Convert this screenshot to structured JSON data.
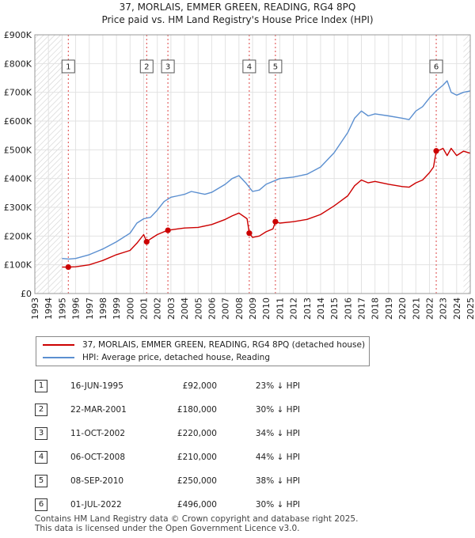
{
  "header": {
    "title": "37, MORLAIS, EMMER GREEN, READING, RG4 8PQ",
    "subtitle": "Price paid vs. HM Land Registry's House Price Index (HPI)"
  },
  "chart_data": {
    "type": "line",
    "title": "37, MORLAIS, EMMER GREEN, READING, RG4 8PQ",
    "subtitle": "Price paid vs. HM Land Registry's House Price Index (HPI)",
    "xlim": [
      1993.0,
      2025.0
    ],
    "ylim": [
      0,
      900000
    ],
    "y_ticks": [
      {
        "value": 0,
        "label": "£0"
      },
      {
        "value": 100000,
        "label": "£100K"
      },
      {
        "value": 200000,
        "label": "£200K"
      },
      {
        "value": 300000,
        "label": "£300K"
      },
      {
        "value": 400000,
        "label": "£400K"
      },
      {
        "value": 500000,
        "label": "£500K"
      },
      {
        "value": 600000,
        "label": "£600K"
      },
      {
        "value": 700000,
        "label": "£700K"
      },
      {
        "value": 800000,
        "label": "£800K"
      },
      {
        "value": 900000,
        "label": "£900K"
      }
    ],
    "x_ticks": [
      "1993",
      "1994",
      "1995",
      "1996",
      "1997",
      "1998",
      "1999",
      "2000",
      "2001",
      "2002",
      "2003",
      "2004",
      "2005",
      "2006",
      "2007",
      "2008",
      "2009",
      "2010",
      "2011",
      "2012",
      "2013",
      "2014",
      "2015",
      "2016",
      "2017",
      "2018",
      "2019",
      "2020",
      "2021",
      "2022",
      "2023",
      "2024",
      "2025"
    ],
    "grid": true,
    "series": [
      {
        "name": "37, MORLAIS, EMMER GREEN, READING, RG4 8PQ (detached house)",
        "color": "#cc0000",
        "points": [
          [
            1995.0,
            92000
          ],
          [
            1995.46,
            92000
          ],
          [
            1996.0,
            93000
          ],
          [
            1997.0,
            100000
          ],
          [
            1998.0,
            115000
          ],
          [
            1999.0,
            135000
          ],
          [
            2000.0,
            150000
          ],
          [
            2000.5,
            175000
          ],
          [
            2001.0,
            205000
          ],
          [
            2001.22,
            180000
          ],
          [
            2001.5,
            190000
          ],
          [
            2002.0,
            205000
          ],
          [
            2002.5,
            215000
          ],
          [
            2002.78,
            220000
          ],
          [
            2003.5,
            225000
          ],
          [
            2004.0,
            228000
          ],
          [
            2005.0,
            230000
          ],
          [
            2006.0,
            240000
          ],
          [
            2007.0,
            258000
          ],
          [
            2007.5,
            270000
          ],
          [
            2008.0,
            280000
          ],
          [
            2008.6,
            260000
          ],
          [
            2008.76,
            210000
          ],
          [
            2009.0,
            195000
          ],
          [
            2009.5,
            200000
          ],
          [
            2010.0,
            215000
          ],
          [
            2010.5,
            225000
          ],
          [
            2010.68,
            250000
          ],
          [
            2011.0,
            245000
          ],
          [
            2012.0,
            250000
          ],
          [
            2013.0,
            258000
          ],
          [
            2014.0,
            275000
          ],
          [
            2015.0,
            305000
          ],
          [
            2016.0,
            340000
          ],
          [
            2016.5,
            375000
          ],
          [
            2017.0,
            395000
          ],
          [
            2017.5,
            385000
          ],
          [
            2018.0,
            390000
          ],
          [
            2019.0,
            380000
          ],
          [
            2020.0,
            372000
          ],
          [
            2020.5,
            370000
          ],
          [
            2021.0,
            385000
          ],
          [
            2021.5,
            395000
          ],
          [
            2022.0,
            420000
          ],
          [
            2022.3,
            440000
          ],
          [
            2022.5,
            496000
          ],
          [
            2022.8,
            500000
          ],
          [
            2023.0,
            505000
          ],
          [
            2023.3,
            480000
          ],
          [
            2023.6,
            505000
          ],
          [
            2024.0,
            480000
          ],
          [
            2024.5,
            495000
          ],
          [
            2025.0,
            488000
          ]
        ]
      },
      {
        "name": "HPI: Average price, detached house, Reading",
        "color": "#5b8fd0",
        "points": [
          [
            1995.0,
            122000
          ],
          [
            1995.5,
            120000
          ],
          [
            1996.0,
            122000
          ],
          [
            1997.0,
            135000
          ],
          [
            1998.0,
            155000
          ],
          [
            1999.0,
            180000
          ],
          [
            2000.0,
            210000
          ],
          [
            2000.5,
            245000
          ],
          [
            2001.0,
            260000
          ],
          [
            2001.5,
            265000
          ],
          [
            2002.0,
            290000
          ],
          [
            2002.5,
            320000
          ],
          [
            2003.0,
            335000
          ],
          [
            2003.5,
            340000
          ],
          [
            2004.0,
            345000
          ],
          [
            2004.5,
            355000
          ],
          [
            2005.0,
            350000
          ],
          [
            2005.5,
            345000
          ],
          [
            2006.0,
            352000
          ],
          [
            2007.0,
            380000
          ],
          [
            2007.5,
            400000
          ],
          [
            2008.0,
            410000
          ],
          [
            2008.5,
            385000
          ],
          [
            2009.0,
            355000
          ],
          [
            2009.5,
            360000
          ],
          [
            2010.0,
            380000
          ],
          [
            2011.0,
            400000
          ],
          [
            2012.0,
            405000
          ],
          [
            2013.0,
            415000
          ],
          [
            2014.0,
            440000
          ],
          [
            2015.0,
            490000
          ],
          [
            2016.0,
            560000
          ],
          [
            2016.5,
            610000
          ],
          [
            2017.0,
            635000
          ],
          [
            2017.5,
            618000
          ],
          [
            2018.0,
            625000
          ],
          [
            2019.0,
            618000
          ],
          [
            2020.0,
            610000
          ],
          [
            2020.5,
            605000
          ],
          [
            2021.0,
            635000
          ],
          [
            2021.5,
            650000
          ],
          [
            2022.0,
            680000
          ],
          [
            2022.5,
            705000
          ],
          [
            2023.0,
            725000
          ],
          [
            2023.3,
            740000
          ],
          [
            2023.6,
            700000
          ],
          [
            2024.0,
            690000
          ],
          [
            2024.5,
            700000
          ],
          [
            2025.0,
            705000
          ]
        ]
      }
    ],
    "sales": [
      {
        "n": "1",
        "x": 1995.46,
        "price": 92000
      },
      {
        "n": "2",
        "x": 2001.22,
        "price": 180000
      },
      {
        "n": "3",
        "x": 2002.78,
        "price": 220000
      },
      {
        "n": "4",
        "x": 2008.76,
        "price": 210000
      },
      {
        "n": "5",
        "x": 2010.68,
        "price": 250000
      },
      {
        "n": "6",
        "x": 2022.5,
        "price": 496000
      }
    ],
    "hatch_ranges": [
      [
        1993.0,
        1995.0
      ],
      [
        2024.5,
        2025.0
      ]
    ],
    "marker_label_value": 790000
  },
  "legend": {
    "items": [
      {
        "label": "37, MORLAIS, EMMER GREEN, READING, RG4 8PQ (detached house)",
        "color": "#cc0000"
      },
      {
        "label": "HPI: Average price, detached house, Reading",
        "color": "#5b8fd0"
      }
    ]
  },
  "sales_table": [
    {
      "n": "1",
      "date": "16-JUN-1995",
      "price": "£92,000",
      "hpi": "23% ↓ HPI"
    },
    {
      "n": "2",
      "date": "22-MAR-2001",
      "price": "£180,000",
      "hpi": "30% ↓ HPI"
    },
    {
      "n": "3",
      "date": "11-OCT-2002",
      "price": "£220,000",
      "hpi": "34% ↓ HPI"
    },
    {
      "n": "4",
      "date": "06-OCT-2008",
      "price": "£210,000",
      "hpi": "44% ↓ HPI"
    },
    {
      "n": "5",
      "date": "08-SEP-2010",
      "price": "£250,000",
      "hpi": "38% ↓ HPI"
    },
    {
      "n": "6",
      "date": "01-JUL-2022",
      "price": "£496,000",
      "hpi": "30% ↓ HPI"
    }
  ],
  "footer": {
    "line1": "Contains HM Land Registry data © Crown copyright and database right 2025.",
    "line2": "This data is licensed under the Open Government Licence v3.0."
  }
}
